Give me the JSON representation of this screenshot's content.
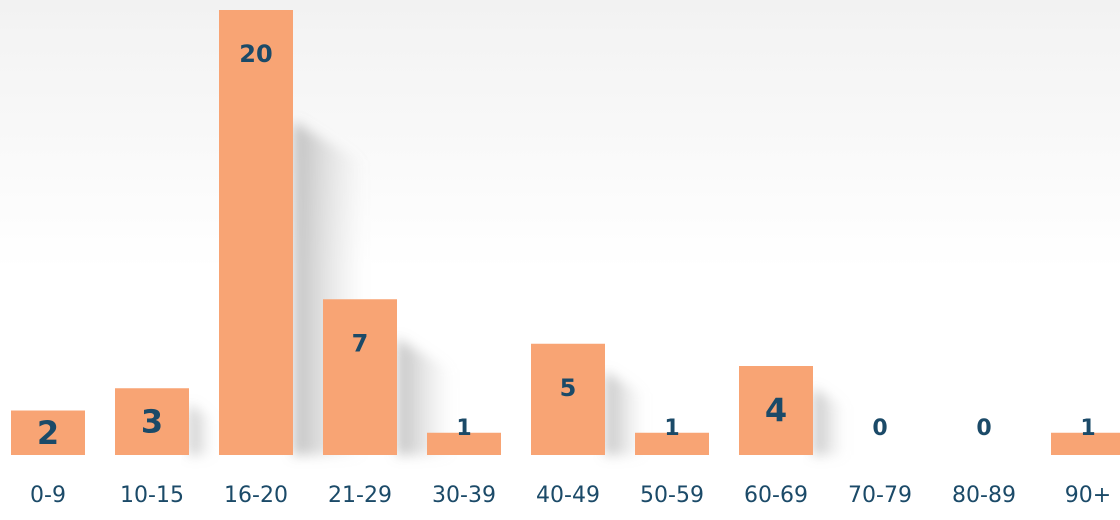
{
  "chart_data": {
    "type": "bar",
    "categories": [
      "0-9",
      "10-15",
      "16-20",
      "21-29",
      "30-39",
      "40-49",
      "50-59",
      "60-69",
      "70-79",
      "80-89",
      "90+"
    ],
    "values": [
      2,
      3,
      20,
      7,
      1,
      5,
      1,
      4,
      0,
      0,
      1
    ],
    "title": "",
    "xlabel": "",
    "ylabel": "",
    "ylim": [
      0,
      20
    ],
    "grid": false,
    "legend": "none",
    "data_labels": true
  },
  "colors": {
    "bar": "#f8a474",
    "value_label": "#1b4a68",
    "tick_label": "#1b4a68",
    "shadow": "#9a9a9a"
  }
}
